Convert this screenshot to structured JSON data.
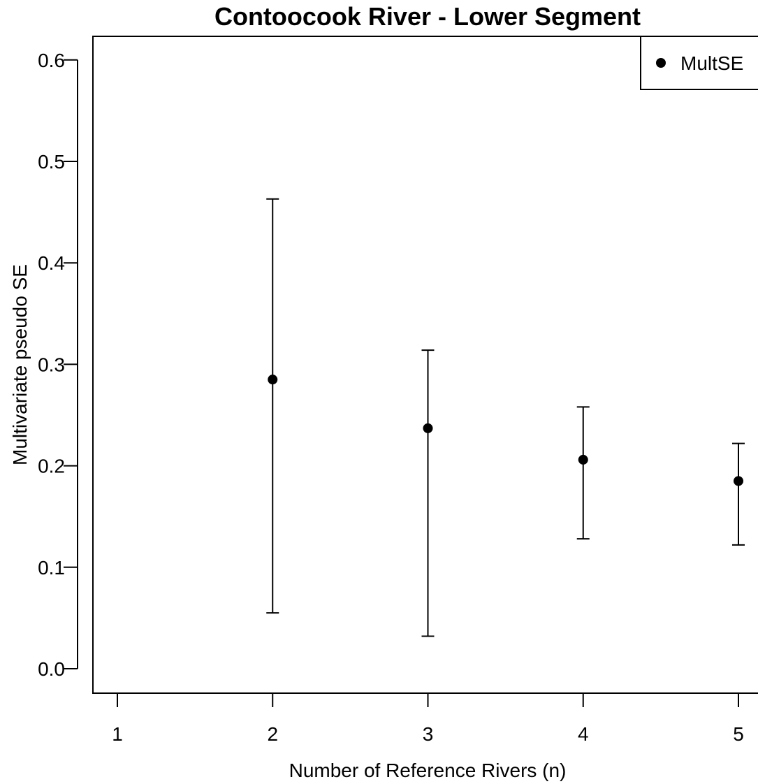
{
  "chart_data": {
    "type": "scatter",
    "title": "Contoocook River - Lower Segment",
    "xlabel": "Number of Reference Rivers (n)",
    "ylabel": "Multivariate pseudo SE",
    "xlim": [
      1,
      5
    ],
    "ylim": [
      0.0,
      0.6
    ],
    "x_ticks": [
      1,
      2,
      3,
      4,
      5
    ],
    "y_ticks": [
      0.0,
      0.1,
      0.2,
      0.3,
      0.4,
      0.5,
      0.6
    ],
    "y_tick_labels": [
      "0.0",
      "0.1",
      "0.2",
      "0.3",
      "0.4",
      "0.5",
      "0.6"
    ],
    "grid": false,
    "legend": {
      "position": "top-right",
      "entries": [
        "MultSE"
      ]
    },
    "series": [
      {
        "name": "MultSE",
        "color": "#000000",
        "points": [
          {
            "x": 2,
            "y": 0.285,
            "lower": 0.055,
            "upper": 0.463
          },
          {
            "x": 3,
            "y": 0.237,
            "lower": 0.032,
            "upper": 0.314
          },
          {
            "x": 4,
            "y": 0.206,
            "lower": 0.128,
            "upper": 0.258
          },
          {
            "x": 5,
            "y": 0.185,
            "lower": 0.122,
            "upper": 0.222
          }
        ]
      }
    ]
  }
}
